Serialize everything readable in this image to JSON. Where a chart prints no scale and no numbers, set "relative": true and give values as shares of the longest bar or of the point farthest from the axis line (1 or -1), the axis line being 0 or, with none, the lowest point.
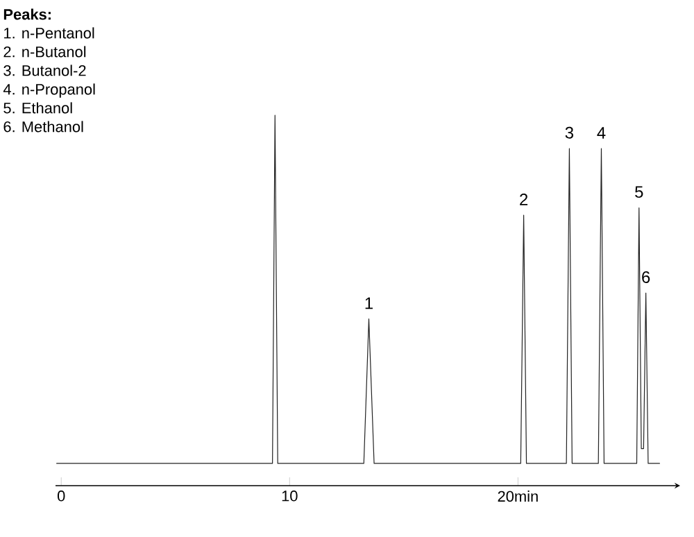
{
  "chart_data": {
    "type": "line",
    "relative": true,
    "title": "Peaks:",
    "annotations": [
      "1. n-Pentanol",
      "2. n-Butanol",
      "3. Butanol-2",
      "4. n-Propanol",
      "5. Ethanol",
      "6. Methanol",
      {
        "text": "1",
        "x": 13.47,
        "y": 0.45
      },
      {
        "text": "2",
        "x": 20.25,
        "y": 0.73
      },
      {
        "text": "3",
        "x": 22.25,
        "y": 0.91
      },
      {
        "text": "4",
        "x": 23.65,
        "y": 0.91
      },
      {
        "text": "5",
        "x": 25.3,
        "y": 0.75
      },
      {
        "text": "6",
        "x": 25.6,
        "y": 0.52
      }
    ],
    "xlim": [
      -0.25,
      27.1
    ],
    "xticks": [
      0,
      10,
      {
        "value": 20,
        "label": "20min"
      }
    ],
    "series": [
      {
        "color": "#222222",
        "x": [
          -0.2,
          9.25,
          9.36,
          9.48,
          13.25,
          13.47,
          13.7,
          20.12,
          20.25,
          20.37,
          22.12,
          22.25,
          22.37,
          23.52,
          23.65,
          23.77,
          25.2,
          25.3,
          25.4,
          25.5,
          25.6,
          25.7,
          26.2
        ],
        "values": [
          0.06,
          0.06,
          1,
          0.06,
          0.06,
          0.45,
          0.06,
          0.06,
          0.73,
          0.06,
          0.06,
          0.91,
          0.06,
          0.06,
          0.91,
          0.06,
          0.06,
          0.75,
          0.1,
          0.1,
          0.52,
          0.06,
          0.06
        ]
      }
    ]
  }
}
